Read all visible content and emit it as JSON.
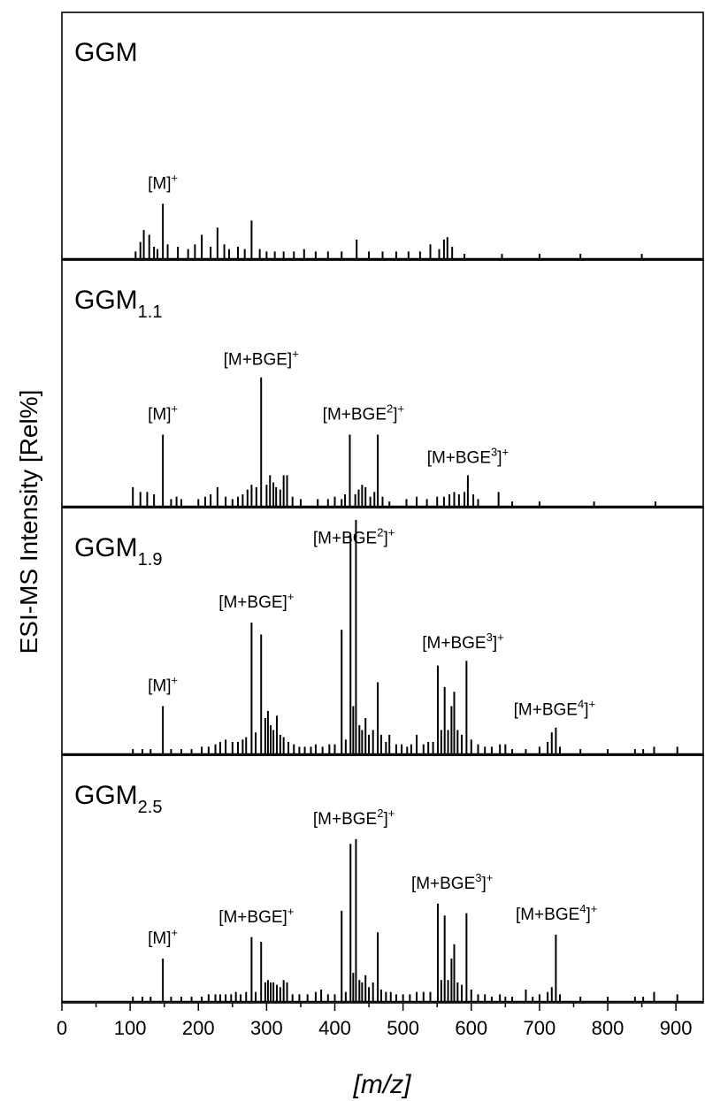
{
  "chart_data": {
    "type": "line",
    "ylabel": "ESI-MS Intensity [Rel%]",
    "xlabel": "[m/z]",
    "xlim": [
      0,
      940
    ],
    "xticks": [
      "0",
      "100",
      "200",
      "300",
      "400",
      "500",
      "600",
      "700",
      "800",
      "900"
    ],
    "panels": [
      {
        "title": "GGM",
        "title_sub": "",
        "peaks": [
          [
            108,
            0.03
          ],
          [
            115,
            0.07
          ],
          [
            120,
            0.12
          ],
          [
            128,
            0.1
          ],
          [
            135,
            0.05
          ],
          [
            140,
            0.04
          ],
          [
            148,
            0.23
          ],
          [
            155,
            0.06
          ],
          [
            170,
            0.05
          ],
          [
            185,
            0.04
          ],
          [
            195,
            0.06
          ],
          [
            205,
            0.1
          ],
          [
            218,
            0.05
          ],
          [
            228,
            0.13
          ],
          [
            238,
            0.06
          ],
          [
            245,
            0.04
          ],
          [
            258,
            0.05
          ],
          [
            268,
            0.04
          ],
          [
            278,
            0.16
          ],
          [
            290,
            0.04
          ],
          [
            300,
            0.03
          ],
          [
            312,
            0.03
          ],
          [
            325,
            0.03
          ],
          [
            340,
            0.03
          ],
          [
            355,
            0.04
          ],
          [
            372,
            0.03
          ],
          [
            390,
            0.03
          ],
          [
            410,
            0.03
          ],
          [
            432,
            0.08
          ],
          [
            450,
            0.03
          ],
          [
            470,
            0.03
          ],
          [
            490,
            0.03
          ],
          [
            508,
            0.03
          ],
          [
            525,
            0.03
          ],
          [
            540,
            0.06
          ],
          [
            553,
            0.04
          ],
          [
            560,
            0.08
          ],
          [
            565,
            0.09
          ],
          [
            572,
            0.05
          ],
          [
            590,
            0.02
          ],
          [
            645,
            0.02
          ],
          [
            700,
            0.02
          ],
          [
            760,
            0.02
          ],
          [
            850,
            0.02
          ]
        ],
        "annotations": [
          {
            "text": "[M]",
            "sup": "+",
            "x": 148,
            "y": 0.27
          }
        ]
      },
      {
        "title": "GGM",
        "title_sub": "1.1",
        "peaks": [
          [
            104,
            0.08
          ],
          [
            115,
            0.06
          ],
          [
            125,
            0.06
          ],
          [
            135,
            0.05
          ],
          [
            148,
            0.3
          ],
          [
            160,
            0.03
          ],
          [
            168,
            0.04
          ],
          [
            175,
            0.03
          ],
          [
            200,
            0.03
          ],
          [
            210,
            0.04
          ],
          [
            218,
            0.05
          ],
          [
            228,
            0.08
          ],
          [
            240,
            0.04
          ],
          [
            250,
            0.03
          ],
          [
            258,
            0.04
          ],
          [
            265,
            0.05
          ],
          [
            272,
            0.07
          ],
          [
            278,
            0.09
          ],
          [
            285,
            0.08
          ],
          [
            292,
            0.54
          ],
          [
            300,
            0.09
          ],
          [
            305,
            0.13
          ],
          [
            310,
            0.1
          ],
          [
            314,
            0.08
          ],
          [
            320,
            0.07
          ],
          [
            325,
            0.13
          ],
          [
            330,
            0.13
          ],
          [
            338,
            0.04
          ],
          [
            350,
            0.03
          ],
          [
            375,
            0.03
          ],
          [
            390,
            0.03
          ],
          [
            400,
            0.04
          ],
          [
            410,
            0.03
          ],
          [
            415,
            0.05
          ],
          [
            422,
            0.3
          ],
          [
            430,
            0.05
          ],
          [
            435,
            0.07
          ],
          [
            440,
            0.09
          ],
          [
            445,
            0.08
          ],
          [
            452,
            0.04
          ],
          [
            458,
            0.06
          ],
          [
            463,
            0.3
          ],
          [
            470,
            0.04
          ],
          [
            480,
            0.02
          ],
          [
            505,
            0.03
          ],
          [
            520,
            0.04
          ],
          [
            535,
            0.03
          ],
          [
            550,
            0.04
          ],
          [
            560,
            0.04
          ],
          [
            568,
            0.05
          ],
          [
            575,
            0.06
          ],
          [
            582,
            0.05
          ],
          [
            590,
            0.06
          ],
          [
            595,
            0.13
          ],
          [
            603,
            0.05
          ],
          [
            610,
            0.03
          ],
          [
            640,
            0.06
          ],
          [
            660,
            0.02
          ],
          [
            700,
            0.02
          ],
          [
            780,
            0.02
          ],
          [
            870,
            0.02
          ]
        ],
        "annotations": [
          {
            "text": "[M]",
            "sup": "+",
            "x": 148,
            "y": 0.34
          },
          {
            "text": "[M+BGE]",
            "sup": "+",
            "x": 292,
            "y": 0.57
          },
          {
            "text": "[M+BGE",
            "sup": "2",
            "text2": "]",
            "sup2": "+",
            "x": 442,
            "y": 0.34
          },
          {
            "text": "[M+BGE",
            "sup": "3",
            "text2": "]",
            "sup2": "+",
            "x": 595,
            "y": 0.16
          }
        ]
      },
      {
        "title": "GGM",
        "title_sub": "1.9",
        "peaks": [
          [
            104,
            0.02
          ],
          [
            118,
            0.02
          ],
          [
            130,
            0.02
          ],
          [
            148,
            0.2
          ],
          [
            160,
            0.02
          ],
          [
            175,
            0.02
          ],
          [
            190,
            0.02
          ],
          [
            205,
            0.03
          ],
          [
            215,
            0.03
          ],
          [
            225,
            0.04
          ],
          [
            232,
            0.05
          ],
          [
            240,
            0.06
          ],
          [
            250,
            0.05
          ],
          [
            258,
            0.05
          ],
          [
            265,
            0.06
          ],
          [
            270,
            0.07
          ],
          [
            278,
            0.55
          ],
          [
            284,
            0.09
          ],
          [
            292,
            0.5
          ],
          [
            298,
            0.15
          ],
          [
            302,
            0.18
          ],
          [
            306,
            0.12
          ],
          [
            310,
            0.1
          ],
          [
            315,
            0.16
          ],
          [
            320,
            0.08
          ],
          [
            325,
            0.07
          ],
          [
            332,
            0.05
          ],
          [
            340,
            0.04
          ],
          [
            348,
            0.03
          ],
          [
            356,
            0.03
          ],
          [
            365,
            0.03
          ],
          [
            372,
            0.04
          ],
          [
            382,
            0.03
          ],
          [
            392,
            0.04
          ],
          [
            400,
            0.04
          ],
          [
            410,
            0.52
          ],
          [
            416,
            0.06
          ],
          [
            423,
            0.92
          ],
          [
            427,
            0.2
          ],
          [
            431,
            0.98
          ],
          [
            436,
            0.12
          ],
          [
            440,
            0.1
          ],
          [
            445,
            0.15
          ],
          [
            450,
            0.08
          ],
          [
            456,
            0.1
          ],
          [
            463,
            0.3
          ],
          [
            468,
            0.08
          ],
          [
            475,
            0.05
          ],
          [
            480,
            0.08
          ],
          [
            490,
            0.04
          ],
          [
            498,
            0.04
          ],
          [
            506,
            0.03
          ],
          [
            512,
            0.04
          ],
          [
            520,
            0.08
          ],
          [
            530,
            0.04
          ],
          [
            537,
            0.05
          ],
          [
            544,
            0.05
          ],
          [
            551,
            0.37
          ],
          [
            556,
            0.1
          ],
          [
            561,
            0.28
          ],
          [
            566,
            0.1
          ],
          [
            571,
            0.2
          ],
          [
            575,
            0.26
          ],
          [
            580,
            0.1
          ],
          [
            586,
            0.08
          ],
          [
            593,
            0.39
          ],
          [
            600,
            0.06
          ],
          [
            610,
            0.04
          ],
          [
            620,
            0.03
          ],
          [
            630,
            0.03
          ],
          [
            642,
            0.04
          ],
          [
            650,
            0.04
          ],
          [
            660,
            0.02
          ],
          [
            680,
            0.02
          ],
          [
            700,
            0.03
          ],
          [
            712,
            0.05
          ],
          [
            718,
            0.09
          ],
          [
            724,
            0.11
          ],
          [
            730,
            0.03
          ],
          [
            760,
            0.02
          ],
          [
            800,
            0.02
          ],
          [
            840,
            0.02
          ],
          [
            852,
            0.02
          ],
          [
            868,
            0.03
          ],
          [
            902,
            0.03
          ]
        ],
        "annotations": [
          {
            "text": "[M]",
            "sup": "+",
            "x": 148,
            "y": 0.24
          },
          {
            "text": "[M+BGE]",
            "sup": "+",
            "x": 285,
            "y": 0.59
          },
          {
            "text": "[M+BGE",
            "sup": "2",
            "text2": "]",
            "sup2": "+",
            "x": 428,
            "y": 0.86
          },
          {
            "text": "[M+BGE",
            "sup": "3",
            "text2": "]",
            "sup2": "+",
            "x": 588,
            "y": 0.42
          },
          {
            "text": "[M+BGE",
            "sup": "4",
            "text2": "]",
            "sup2": "+",
            "x": 722,
            "y": 0.14
          }
        ]
      },
      {
        "title": "GGM",
        "title_sub": "2.5",
        "peaks": [
          [
            104,
            0.02
          ],
          [
            118,
            0.02
          ],
          [
            130,
            0.02
          ],
          [
            148,
            0.18
          ],
          [
            160,
            0.02
          ],
          [
            175,
            0.02
          ],
          [
            190,
            0.02
          ],
          [
            205,
            0.02
          ],
          [
            215,
            0.03
          ],
          [
            225,
            0.03
          ],
          [
            232,
            0.03
          ],
          [
            240,
            0.03
          ],
          [
            248,
            0.03
          ],
          [
            255,
            0.04
          ],
          [
            262,
            0.03
          ],
          [
            270,
            0.04
          ],
          [
            278,
            0.27
          ],
          [
            284,
            0.04
          ],
          [
            292,
            0.25
          ],
          [
            298,
            0.08
          ],
          [
            302,
            0.09
          ],
          [
            306,
            0.08
          ],
          [
            310,
            0.08
          ],
          [
            315,
            0.07
          ],
          [
            320,
            0.06
          ],
          [
            325,
            0.09
          ],
          [
            330,
            0.08
          ],
          [
            338,
            0.03
          ],
          [
            348,
            0.03
          ],
          [
            360,
            0.03
          ],
          [
            372,
            0.04
          ],
          [
            380,
            0.05
          ],
          [
            390,
            0.03
          ],
          [
            400,
            0.03
          ],
          [
            410,
            0.38
          ],
          [
            416,
            0.04
          ],
          [
            423,
            0.66
          ],
          [
            427,
            0.12
          ],
          [
            431,
            0.68
          ],
          [
            436,
            0.09
          ],
          [
            440,
            0.08
          ],
          [
            445,
            0.11
          ],
          [
            450,
            0.06
          ],
          [
            456,
            0.08
          ],
          [
            463,
            0.29
          ],
          [
            468,
            0.05
          ],
          [
            475,
            0.04
          ],
          [
            482,
            0.04
          ],
          [
            490,
            0.03
          ],
          [
            500,
            0.03
          ],
          [
            510,
            0.03
          ],
          [
            520,
            0.04
          ],
          [
            530,
            0.04
          ],
          [
            540,
            0.04
          ],
          [
            551,
            0.41
          ],
          [
            556,
            0.09
          ],
          [
            561,
            0.36
          ],
          [
            566,
            0.09
          ],
          [
            571,
            0.18
          ],
          [
            575,
            0.24
          ],
          [
            580,
            0.08
          ],
          [
            586,
            0.07
          ],
          [
            593,
            0.37
          ],
          [
            600,
            0.05
          ],
          [
            610,
            0.03
          ],
          [
            620,
            0.03
          ],
          [
            630,
            0.02
          ],
          [
            642,
            0.03
          ],
          [
            650,
            0.02
          ],
          [
            660,
            0.02
          ],
          [
            680,
            0.05
          ],
          [
            690,
            0.02
          ],
          [
            700,
            0.03
          ],
          [
            712,
            0.04
          ],
          [
            718,
            0.06
          ],
          [
            724,
            0.28
          ],
          [
            730,
            0.03
          ],
          [
            760,
            0.02
          ],
          [
            800,
            0.02
          ],
          [
            840,
            0.02
          ],
          [
            852,
            0.02
          ],
          [
            868,
            0.04
          ],
          [
            902,
            0.03
          ]
        ],
        "annotations": [
          {
            "text": "[M]",
            "sup": "+",
            "x": 148,
            "y": 0.22
          },
          {
            "text": "[M+BGE]",
            "sup": "+",
            "x": 285,
            "y": 0.31
          },
          {
            "text": "[M+BGE",
            "sup": "2",
            "text2": "]",
            "sup2": "+",
            "x": 428,
            "y": 0.72
          },
          {
            "text": "[M+BGE",
            "sup": "3",
            "text2": "]",
            "sup2": "+",
            "x": 572,
            "y": 0.45
          },
          {
            "text": "[M+BGE",
            "sup": "4",
            "text2": "]",
            "sup2": "+",
            "x": 725,
            "y": 0.32
          }
        ]
      }
    ]
  }
}
